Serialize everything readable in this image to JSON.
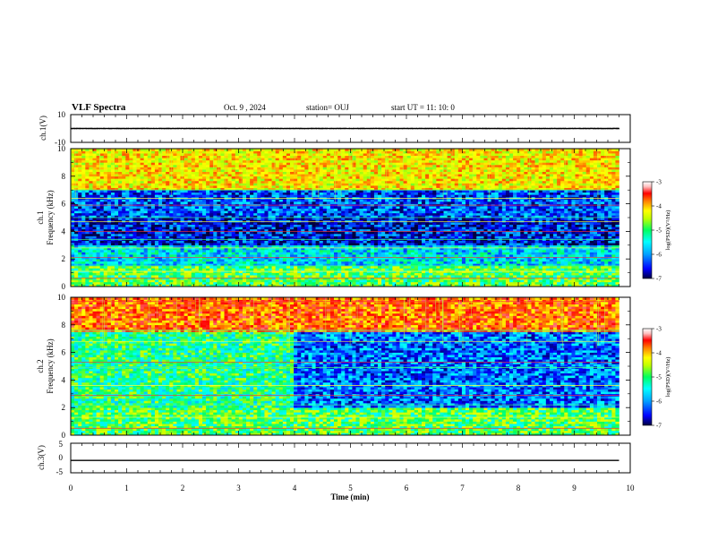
{
  "header": {
    "title": "VLF Spectra",
    "date": "Oct. 9  , 2024",
    "station": "station= OUJ",
    "start": "start  UT  =   11: 10: 0"
  },
  "colors": {
    "axis": "#000000",
    "colormap": [
      "#000040",
      "#0000ff",
      "#00a0ff",
      "#00ffff",
      "#00ff60",
      "#c0ff00",
      "#ffff00",
      "#ff8000",
      "#ff0000",
      "#ffc0c0",
      "#ffffff"
    ]
  },
  "chart_data": [
    {
      "type": "line",
      "panel": "ch1-waveform",
      "ylabel": "ch.1(V)",
      "ylim": [
        -10,
        10
      ],
      "ytick_labels": [
        "10",
        "-10"
      ],
      "x_range_min": [
        0,
        9.8
      ],
      "y_band_approx": [
        -0.6,
        0.6
      ]
    },
    {
      "type": "heatmap",
      "panel": "ch1-spectrogram",
      "ylabel": "ch.1\nFrequency  (kHz)",
      "ylim": [
        0,
        10
      ],
      "ytick_labels": [
        "0",
        "2",
        "4",
        "6",
        "8",
        "10"
      ],
      "x_range_min": [
        0,
        9.8
      ],
      "colorbar": {
        "label": "log(PSD)(V²/Hz)",
        "range": [
          -7,
          -3
        ],
        "tick_labels": [
          "-3",
          "-4",
          "-5",
          "-6",
          "-7"
        ]
      },
      "bands_khz": [
        {
          "from": 0,
          "to": 1.5,
          "level": -5.3
        },
        {
          "from": 1.5,
          "to": 3.0,
          "level": -5.9
        },
        {
          "from": 3.0,
          "to": 5.0,
          "level": -6.6
        },
        {
          "from": 5.0,
          "to": 7.0,
          "level": -6.4
        },
        {
          "from": 7.0,
          "to": 10.0,
          "level": -4.6
        }
      ],
      "tones_khz": [
        0.6,
        1.1,
        1.5,
        2.1,
        2.8,
        3.4,
        4.0,
        4.7,
        5.0,
        5.9,
        6.4,
        7.0
      ]
    },
    {
      "type": "heatmap",
      "panel": "ch2-spectrogram",
      "ylabel": "ch.2\nFrequency  (kHz)",
      "ylim": [
        0,
        10
      ],
      "ytick_labels": [
        "0",
        "2",
        "4",
        "6",
        "8",
        "10"
      ],
      "x_range_min": [
        0,
        9.8
      ],
      "colorbar": {
        "label": "log(PSD)(V²/Hz)",
        "range": [
          -7,
          -3
        ],
        "tick_labels": [
          "-3",
          "-4",
          "-5",
          "-6",
          "-7"
        ]
      },
      "bands_khz": [
        {
          "from": 0,
          "to": 2.0,
          "level": -5.3
        },
        {
          "from": 2.0,
          "to": 7.5,
          "level": -5.5,
          "after_4min": -6.3
        },
        {
          "from": 7.5,
          "to": 10.0,
          "level": -4.1
        }
      ],
      "tones_khz": [
        0.5,
        1.3,
        2.2,
        2.9,
        3.6,
        4.9,
        5.3,
        6.8,
        7.6,
        9.7
      ]
    },
    {
      "type": "line",
      "panel": "ch3-waveform",
      "ylabel": "ch.3(V)",
      "ylim": [
        -5,
        5
      ],
      "ytick_labels": [
        "5",
        "0",
        "-5"
      ],
      "x_range_min": [
        0,
        9.8
      ],
      "constant_value": -0.8
    }
  ],
  "xaxis": {
    "label": "Time  (min)",
    "range": [
      0,
      10
    ],
    "tick_labels": [
      "0",
      "1",
      "2",
      "3",
      "4",
      "5",
      "6",
      "7",
      "8",
      "9",
      "10"
    ]
  }
}
